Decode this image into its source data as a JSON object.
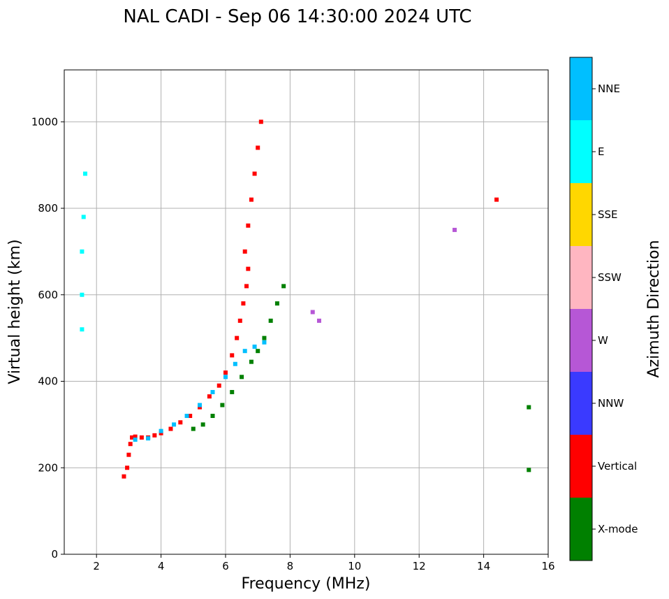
{
  "chart_data": {
    "type": "scatter",
    "title": "NAL CADI - Sep 06 14:30:00 2024 UTC",
    "xlabel": "Frequency (MHz)",
    "ylabel": "Virtual height (km)",
    "xlim": [
      1,
      16
    ],
    "ylim": [
      0,
      1120
    ],
    "xticks": [
      2,
      4,
      6,
      8,
      10,
      12,
      14,
      16
    ],
    "yticks": [
      0,
      200,
      400,
      600,
      800,
      1000
    ],
    "grid": true,
    "colorbar": {
      "title": "Azimuth Direction",
      "position": "right",
      "categories": [
        {
          "name": "X-mode",
          "color": "#008000"
        },
        {
          "name": "Vertical",
          "color": "#ff0000"
        },
        {
          "name": "NNW",
          "color": "#3a3aff"
        },
        {
          "name": "W",
          "color": "#b657d6"
        },
        {
          "name": "SSW",
          "color": "#ffb6c1"
        },
        {
          "name": "SSE",
          "color": "#ffd700"
        },
        {
          "name": "E",
          "color": "#00ffff"
        },
        {
          "name": "NNE",
          "color": "#00bfff"
        }
      ]
    },
    "trace": [
      {
        "mode": "Vertical",
        "x": [
          2.85,
          2.95,
          3.0,
          3.05,
          3.1,
          3.2,
          3.4,
          3.6,
          3.8,
          4.0,
          4.3,
          4.6,
          4.9,
          5.2,
          5.5,
          5.8,
          6.0,
          6.2,
          6.35,
          6.45,
          6.55,
          6.65,
          6.7
        ],
        "y": [
          180,
          200,
          230,
          255,
          270,
          272,
          270,
          270,
          275,
          280,
          290,
          305,
          320,
          340,
          365,
          390,
          420,
          460,
          500,
          540,
          580,
          620,
          660
        ]
      },
      {
        "mode": "NNE",
        "x": [
          3.2,
          3.6,
          4.0,
          4.4,
          4.8,
          5.2,
          5.6,
          6.0,
          6.3,
          6.6,
          6.9,
          7.2
        ],
        "y": [
          265,
          268,
          285,
          300,
          320,
          345,
          375,
          410,
          440,
          470,
          480,
          490
        ]
      },
      {
        "mode": "X-mode",
        "x": [
          5.0,
          5.3,
          5.6,
          5.9,
          6.2,
          6.5,
          6.8,
          7.0,
          7.2,
          7.4,
          7.6,
          7.8
        ],
        "y": [
          290,
          300,
          320,
          345,
          375,
          410,
          445,
          470,
          500,
          540,
          580,
          620
        ]
      },
      {
        "mode": "Vertical",
        "x": [
          6.6,
          6.7,
          6.8,
          6.9,
          7.0,
          7.1
        ],
        "y": [
          700,
          760,
          820,
          880,
          940,
          1000
        ]
      },
      {
        "mode": "E",
        "x": [
          1.55,
          1.55,
          1.55,
          1.6,
          1.65
        ],
        "y": [
          520,
          600,
          700,
          780,
          880
        ]
      },
      {
        "mode": "X-mode",
        "x": [
          15.4,
          15.4
        ],
        "y": [
          195,
          340
        ]
      },
      {
        "mode": "Vertical",
        "x": [
          14.4
        ],
        "y": [
          820
        ]
      },
      {
        "mode": "W",
        "x": [
          8.7,
          8.9,
          13.1
        ],
        "y": [
          560,
          540,
          750
        ]
      }
    ]
  }
}
